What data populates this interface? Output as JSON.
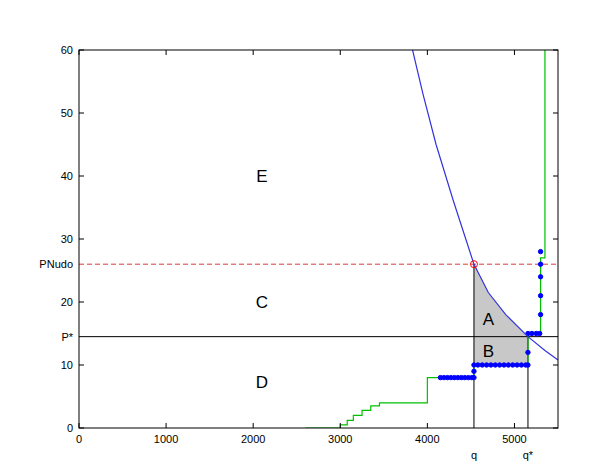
{
  "chart_data": {
    "type": "line",
    "xlim": [
      0,
      5500
    ],
    "xticks": [
      0,
      1000,
      2000,
      3000,
      4000,
      5000
    ],
    "ylim": [
      0,
      60
    ],
    "yticks": [
      0,
      10,
      20,
      30,
      40,
      50,
      60
    ],
    "grid": false,
    "series": [
      {
        "type": "line",
        "color": "#00c000",
        "line_style": "solid",
        "x": [
          2600,
          3000,
          3000,
          3080,
          3080,
          3150,
          3150,
          3250,
          3250,
          3350,
          3350,
          3450,
          3450,
          4000,
          4000,
          4535,
          4535,
          5155,
          5155,
          5300,
          5300,
          5350,
          5350
        ],
        "values": [
          0,
          0,
          0.5,
          0.5,
          1.2,
          1.2,
          2,
          2,
          2.8,
          2.8,
          3.5,
          3.5,
          4,
          4,
          8,
          8,
          10,
          10,
          15,
          15,
          27,
          27,
          60
        ]
      },
      {
        "type": "scatter",
        "color": "#0000ff",
        "marker": "circle",
        "x": [
          4150,
          4190,
          4230,
          4270,
          4310,
          4350,
          4390,
          4430,
          4470,
          4510,
          4535,
          4535,
          4535,
          4580,
          4630,
          4680,
          4730,
          4780,
          4830,
          4880,
          4930,
          4980,
          5030,
          5080,
          5130,
          5155,
          5155,
          5155,
          5200,
          5250,
          5290,
          5300,
          5300,
          5300,
          5300,
          5300
        ],
        "values": [
          8,
          8,
          8,
          8,
          8,
          8,
          8,
          8,
          8,
          8,
          8,
          9,
          10,
          10,
          10,
          10,
          10,
          10,
          10,
          10,
          10,
          10,
          10,
          10,
          10,
          10,
          12,
          15,
          15,
          15,
          15,
          18,
          21,
          24,
          26,
          28
        ]
      },
      {
        "type": "line",
        "color": "#3333dd",
        "line_style": "solid",
        "x": [
          3830,
          3950,
          4100,
          4300,
          4535,
          4700,
          4900,
          5155,
          5350,
          5500
        ],
        "values": [
          60,
          53,
          45,
          36,
          26,
          21.5,
          18,
          14.5,
          12.3,
          10.8
        ]
      }
    ],
    "reference_lines": [
      {
        "label": "PNudo",
        "value": 26,
        "color": "#d04040",
        "line_style": "dashed"
      },
      {
        "label": "P*",
        "value": 14.5,
        "color": "#000000",
        "line_style": "solid"
      }
    ],
    "vertical_lines": [
      {
        "label": "q",
        "x": 4535,
        "to": 26
      },
      {
        "label": "q*",
        "x": 5155,
        "to": 14.5
      }
    ],
    "intersection": {
      "x": 4535,
      "y": 26,
      "color": "#ff0000"
    },
    "shaded_area": {
      "from": 4535,
      "to": 5155,
      "base": 10,
      "color": "#c8c8c8"
    },
    "annotations": [
      {
        "text": "E",
        "x": 2100,
        "y": 40
      },
      {
        "text": "C",
        "x": 2100,
        "y": 20
      },
      {
        "text": "D",
        "x": 2100,
        "y": 7.3
      },
      {
        "text": "A",
        "x": 4700,
        "y": 17.3
      },
      {
        "text": "B",
        "x": 4700,
        "y": 12.3
      }
    ]
  }
}
